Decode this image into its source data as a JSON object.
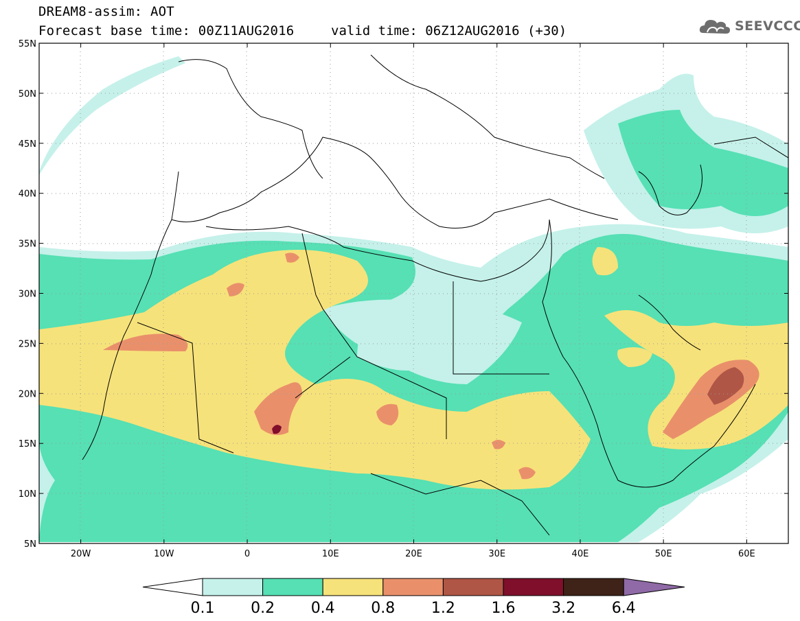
{
  "header": {
    "title": "DREAM8-assim: AOT",
    "base_time": "Forecast base time: 00Z11AUG2016",
    "valid_time": "valid time: 06Z12AUG2016 (+30)"
  },
  "logo": {
    "text": "SEEVCCC",
    "icon": "cloud-icon"
  },
  "map": {
    "lon_range": [
      -25,
      65
    ],
    "lat_range": [
      5,
      55
    ],
    "lon_ticks": [
      "20W",
      "10W",
      "0",
      "10E",
      "20E",
      "30E",
      "40E",
      "50E",
      "60E"
    ],
    "lat_ticks": [
      "55N",
      "50N",
      "45N",
      "40N",
      "35N",
      "30N",
      "25N",
      "20N",
      "15N",
      "10N",
      "5N"
    ],
    "grid": "dotted"
  },
  "colorbar": {
    "labels": [
      "0.1",
      "0.2",
      "0.4",
      "0.8",
      "1.2",
      "1.6",
      "3.2",
      "6.4"
    ],
    "colors": [
      "#c5f1ea",
      "#56e0b4",
      "#f6e27a",
      "#e9906b",
      "#b05646",
      "#7f0f2b",
      "#3f2318",
      "#8f6aa6"
    ]
  }
}
